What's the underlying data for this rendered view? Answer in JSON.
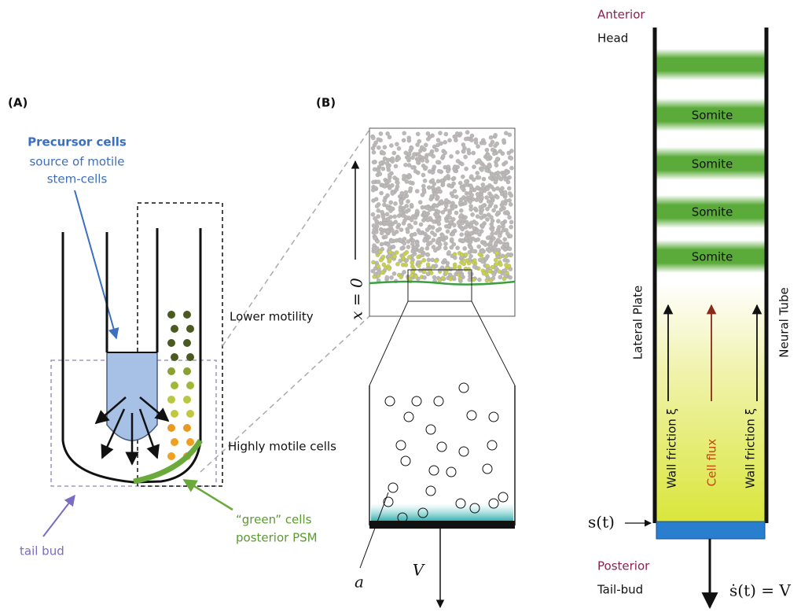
{
  "panel_a": {
    "label": "(A)",
    "precursor_title": "Precursor cells",
    "precursor_lines": [
      "source of motile",
      "stem-cells"
    ],
    "lower_motility": "Lower motility",
    "highly_motile": "Highly motile cells",
    "green_cells": [
      "“green” cells",
      "posterior PSM"
    ],
    "tail_bud": "tail bud"
  },
  "panel_b": {
    "label": "(B)",
    "origin": "x = 0",
    "radius": "a",
    "velocity": "V"
  },
  "panel_c": {
    "anterior": "Anterior",
    "head": "Head",
    "somites": [
      "Somite",
      "Somite",
      "Somite",
      "Somite"
    ],
    "lateral_plate": "Lateral Plate",
    "neural_tube": "Neural Tube",
    "wall_friction_left": "Wall friction ξ",
    "cell_flux": "Cell flux",
    "wall_friction_right": "Wall friction ξ",
    "position": "s(t)",
    "posterior": "Posterior",
    "tail_bud": "Tail-bud",
    "speed": "ṡ(t) = V"
  }
}
